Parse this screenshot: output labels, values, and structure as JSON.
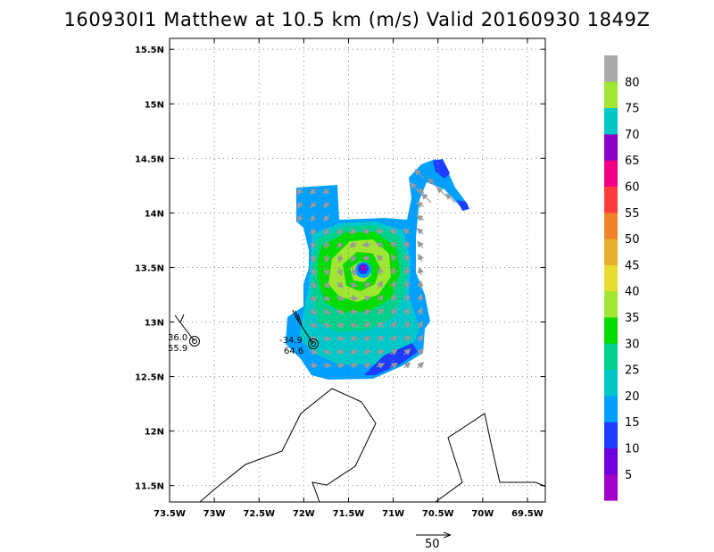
{
  "title": "160930I1 Matthew at 10.5 km (m/s) Valid 20160930 1849Z",
  "map": {
    "lon_ticks": [
      "73.5W",
      "73W",
      "72.5W",
      "72W",
      "71.5W",
      "71W",
      "70.5W",
      "70W",
      "69.5W"
    ],
    "lat_ticks": [
      "15.5N",
      "15N",
      "14.5N",
      "14N",
      "13.5N",
      "13N",
      "12.5N",
      "12N",
      "11.5N"
    ],
    "lon_range": [
      -73.5,
      -69.3
    ],
    "lat_range": [
      11.35,
      15.6
    ],
    "grid": "dotted",
    "wind_units": "m/s"
  },
  "colorbar": {
    "labels": [
      "5",
      "10",
      "15",
      "20",
      "25",
      "30",
      "35",
      "40",
      "45",
      "50",
      "55",
      "60",
      "65",
      "70",
      "75",
      "80"
    ],
    "colors": [
      "#a000c8",
      "#6e00dc",
      "#1e3cff",
      "#00a0ff",
      "#00c8c8",
      "#00d28c",
      "#00dc00",
      "#a0e632",
      "#e6dc32",
      "#e6af2d",
      "#f08228",
      "#fa3c3c",
      "#f00082",
      "#8c00c8",
      "#00c8c8",
      "#a0e632",
      "#aaaaaa"
    ]
  },
  "observations": [
    {
      "id": "obs-left",
      "speed": "36.0",
      "pressure": "55.9"
    },
    {
      "id": "obs-center",
      "speed": "-34.9",
      "pressure": "64.6"
    }
  ],
  "reference_vector": {
    "label": "50"
  }
}
